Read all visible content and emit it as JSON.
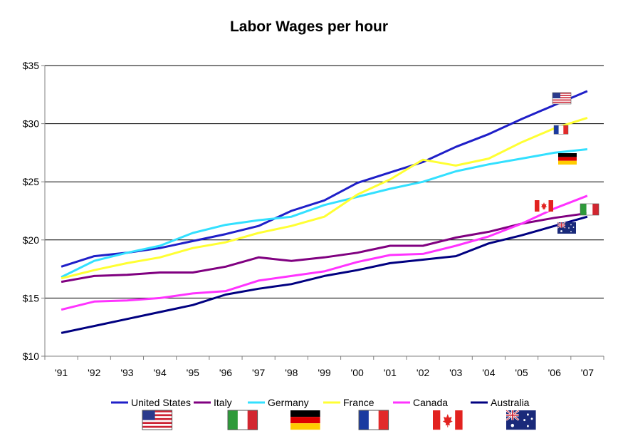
{
  "chart_data": {
    "type": "line",
    "title": "Labor Wages per hour",
    "xlabel": "",
    "ylabel": "",
    "categories": [
      "'91",
      "'92",
      "'93",
      "'94",
      "'95",
      "'96",
      "'97",
      "'98",
      "'99",
      "'00",
      "'01",
      "'02",
      "'03",
      "'04",
      "'05",
      "'06",
      "'07"
    ],
    "ylim": [
      10,
      35
    ],
    "yticks": [
      "$10",
      "$15",
      "$20",
      "$25",
      "$30",
      "$35"
    ],
    "ytick_values": [
      10,
      15,
      20,
      25,
      30,
      35
    ],
    "grid": "horizontal",
    "legend_position": "bottom",
    "series": [
      {
        "name": "United States",
        "color": "#1f1fc8",
        "flag": "us-flag-icon",
        "values": [
          17.7,
          18.6,
          18.9,
          19.3,
          19.9,
          20.5,
          21.2,
          22.5,
          23.4,
          24.9,
          25.8,
          26.7,
          28.0,
          29.1,
          30.4,
          31.6,
          32.8
        ]
      },
      {
        "name": "Italy",
        "color": "#800080",
        "flag": "italy-flag-icon",
        "values": [
          16.4,
          16.9,
          17.0,
          17.2,
          17.2,
          17.7,
          18.5,
          18.2,
          18.5,
          18.9,
          19.5,
          19.5,
          20.2,
          20.7,
          21.4,
          21.9,
          22.3
        ]
      },
      {
        "name": "Germany",
        "color": "#33e0ff",
        "flag": "germany-flag-icon",
        "values": [
          16.8,
          18.2,
          18.9,
          19.5,
          20.6,
          21.3,
          21.7,
          22.0,
          23.0,
          23.7,
          24.4,
          25.0,
          25.9,
          26.5,
          27.0,
          27.5,
          27.8
        ]
      },
      {
        "name": "France",
        "color": "#ffff33",
        "flag": "france-flag-icon",
        "values": [
          16.7,
          17.4,
          18.0,
          18.5,
          19.3,
          19.8,
          20.6,
          21.2,
          22.0,
          23.9,
          25.2,
          26.9,
          26.4,
          27.0,
          28.4,
          29.6,
          30.5
        ]
      },
      {
        "name": "Canada",
        "color": "#ff33ff",
        "flag": "canada-flag-icon",
        "values": [
          14.0,
          14.7,
          14.8,
          15.0,
          15.4,
          15.6,
          16.5,
          16.9,
          17.3,
          18.1,
          18.7,
          18.8,
          19.5,
          20.3,
          21.4,
          22.7,
          23.8
        ]
      },
      {
        "name": "Australia",
        "color": "#000080",
        "flag": "australia-flag-icon",
        "values": [
          12.0,
          12.6,
          13.2,
          13.8,
          14.4,
          15.3,
          15.8,
          16.2,
          16.9,
          17.4,
          18.0,
          18.3,
          18.6,
          19.7,
          20.4,
          21.2,
          22.0
        ]
      }
    ]
  }
}
